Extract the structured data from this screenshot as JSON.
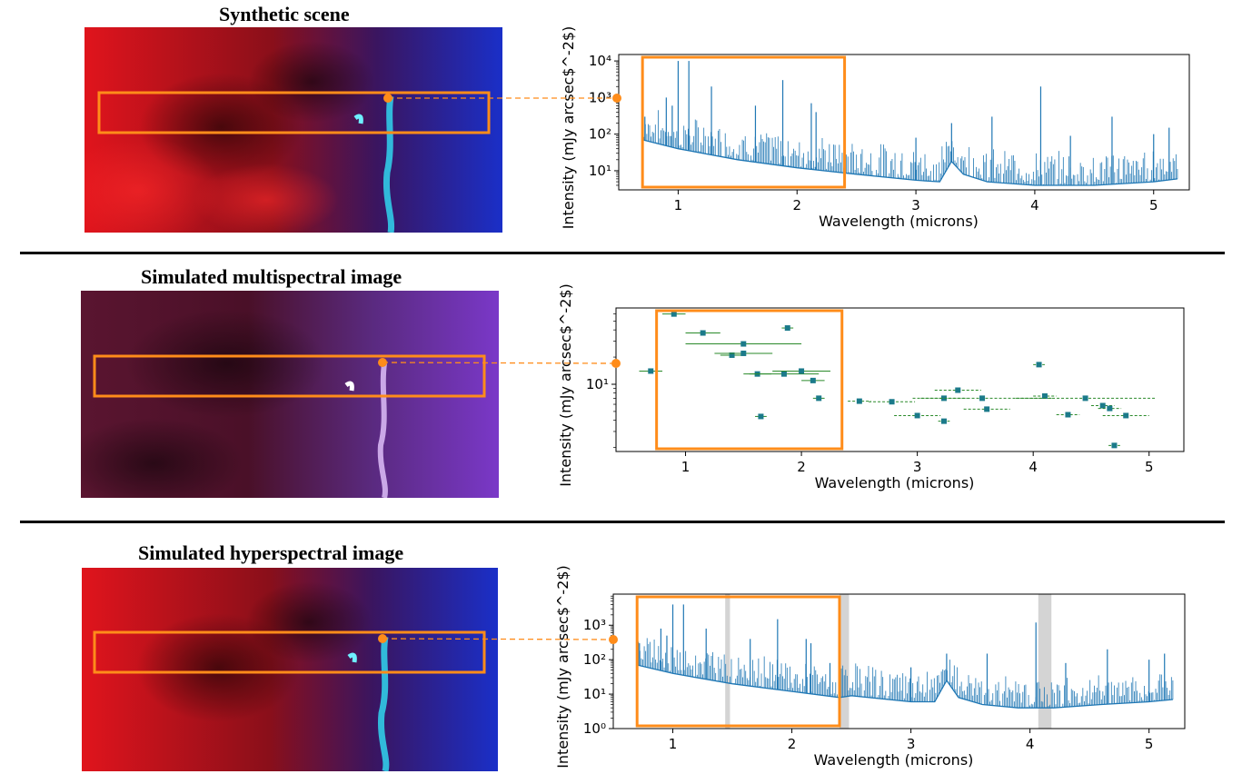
{
  "panels": [
    {
      "title": "Synthetic scene",
      "chart_data": {
        "type": "line",
        "xlabel": "Wavelength (microns)",
        "ylabel": "Intensity (mJy arcsec$^-2$)",
        "xlim": [
          0.5,
          5.3
        ],
        "ylim": [
          3,
          15000
        ],
        "yscale": "log",
        "xticks": [
          "1",
          "2",
          "3",
          "4",
          "5"
        ],
        "yticks": [
          "10¹",
          "10²",
          "10³",
          "10⁴"
        ],
        "selection_box_x": [
          0.7,
          2.4
        ],
        "continuum": [
          [
            0.7,
            70
          ],
          [
            1.0,
            40
          ],
          [
            1.5,
            20
          ],
          [
            2.0,
            12
          ],
          [
            2.5,
            8
          ],
          [
            3.0,
            5.5
          ],
          [
            3.2,
            5
          ],
          [
            3.3,
            18
          ],
          [
            3.4,
            8
          ],
          [
            3.6,
            5
          ],
          [
            4.0,
            4
          ],
          [
            4.5,
            4
          ],
          [
            5.0,
            5
          ],
          [
            5.2,
            6
          ]
        ],
        "emission_lines": [
          [
            0.72,
            300
          ],
          [
            0.9,
            1000
          ],
          [
            0.95,
            600
          ],
          [
            1.0,
            10000
          ],
          [
            1.09,
            10000
          ],
          [
            1.28,
            2000
          ],
          [
            1.65,
            600
          ],
          [
            1.88,
            3000
          ],
          [
            2.12,
            700
          ],
          [
            2.16,
            400
          ],
          [
            3.0,
            80
          ],
          [
            3.3,
            200
          ],
          [
            3.64,
            300
          ],
          [
            4.05,
            2000
          ],
          [
            4.3,
            90
          ],
          [
            4.65,
            300
          ],
          [
            5.0,
            100
          ],
          [
            5.13,
            150
          ]
        ],
        "grid": false,
        "legend": "none"
      }
    },
    {
      "title": "Simulated multispectral image",
      "chart_data": {
        "type": "scatter",
        "xlabel": "Wavelength (microns)",
        "ylabel": "Intensity (mJy arcsec$^-2$)",
        "xlim": [
          0.4,
          5.3
        ],
        "ylim": [
          1.8,
          70
        ],
        "yscale": "log",
        "xticks": [
          "1",
          "2",
          "3",
          "4",
          "5"
        ],
        "yticks": [
          "10¹"
        ],
        "selection_box_x": [
          0.75,
          2.35
        ],
        "points": [
          {
            "x": 0.7,
            "y": 14,
            "xerr": 0.1
          },
          {
            "x": 0.9,
            "y": 60,
            "xerr": 0.1
          },
          {
            "x": 1.15,
            "y": 37,
            "xerr": 0.15
          },
          {
            "x": 1.4,
            "y": 21,
            "xerr": 0.1
          },
          {
            "x": 1.5,
            "y": 28,
            "xerr": 0.5
          },
          {
            "x": 1.5,
            "y": 22,
            "xerr": 0.25
          },
          {
            "x": 1.62,
            "y": 13,
            "xerr": 0.12
          },
          {
            "x": 1.65,
            "y": 4.4,
            "xerr": 0.05
          },
          {
            "x": 1.85,
            "y": 13,
            "xerr": 0.3
          },
          {
            "x": 1.88,
            "y": 42,
            "xerr": 0.05
          },
          {
            "x": 2.0,
            "y": 14,
            "xerr": 0.25
          },
          {
            "x": 2.1,
            "y": 11,
            "xerr": 0.1
          },
          {
            "x": 2.15,
            "y": 7,
            "xerr": 0.05
          },
          {
            "x": 2.5,
            "y": 6.5,
            "xerr": 0.1
          },
          {
            "x": 2.78,
            "y": 6.4,
            "xerr": 0.2
          },
          {
            "x": 3.0,
            "y": 4.5,
            "xerr": 0.2
          },
          {
            "x": 3.23,
            "y": 7,
            "xerr": 0.2
          },
          {
            "x": 3.23,
            "y": 3.9,
            "xerr": 0.05
          },
          {
            "x": 3.35,
            "y": 8.6,
            "xerr": 0.2
          },
          {
            "x": 3.56,
            "y": 7,
            "xerr": 0.6
          },
          {
            "x": 3.6,
            "y": 5.3,
            "xerr": 0.2
          },
          {
            "x": 4.05,
            "y": 16.5,
            "xerr": 0.05
          },
          {
            "x": 4.1,
            "y": 7.4,
            "xerr": 0.1
          },
          {
            "x": 4.3,
            "y": 4.6,
            "xerr": 0.1
          },
          {
            "x": 4.45,
            "y": 7,
            "xerr": 0.6
          },
          {
            "x": 4.6,
            "y": 5.8,
            "xerr": 0.1
          },
          {
            "x": 4.66,
            "y": 5.4,
            "xerr": 0.1
          },
          {
            "x": 4.7,
            "y": 2.1,
            "xerr": 0.05
          },
          {
            "x": 4.8,
            "y": 4.5,
            "xerr": 0.2
          }
        ],
        "grid": false,
        "legend": "none"
      }
    },
    {
      "title": "Simulated hyperspectral image",
      "chart_data": {
        "type": "line",
        "xlabel": "Wavelength (microns)",
        "ylabel": "Intensity (mJy arcsec$^-2$)",
        "xlim": [
          0.5,
          5.3
        ],
        "ylim": [
          1,
          8000
        ],
        "yscale": "log",
        "xticks": [
          "1",
          "2",
          "3",
          "4",
          "5"
        ],
        "yticks": [
          "10⁰",
          "10¹",
          "10²",
          "10³"
        ],
        "selection_box_x": [
          0.7,
          2.4
        ],
        "gaps_x": [
          [
            1.44,
            1.48
          ],
          [
            2.4,
            2.48
          ],
          [
            4.07,
            4.18
          ]
        ],
        "continuum": [
          [
            0.7,
            70
          ],
          [
            1.0,
            40
          ],
          [
            1.5,
            20
          ],
          [
            2.0,
            12
          ],
          [
            2.4,
            8
          ],
          [
            2.5,
            9
          ],
          [
            3.0,
            6
          ],
          [
            3.2,
            6
          ],
          [
            3.3,
            25
          ],
          [
            3.4,
            8
          ],
          [
            3.6,
            5
          ],
          [
            3.9,
            4
          ],
          [
            4.2,
            4
          ],
          [
            4.6,
            5
          ],
          [
            5.0,
            6
          ],
          [
            5.2,
            7
          ]
        ],
        "emission_lines": [
          [
            0.72,
            300
          ],
          [
            0.9,
            800
          ],
          [
            0.95,
            500
          ],
          [
            1.0,
            4000
          ],
          [
            1.09,
            4000
          ],
          [
            1.28,
            800
          ],
          [
            1.65,
            400
          ],
          [
            1.88,
            1500
          ],
          [
            2.12,
            400
          ],
          [
            2.16,
            300
          ],
          [
            2.32,
            80
          ],
          [
            3.0,
            60
          ],
          [
            3.3,
            150
          ],
          [
            3.64,
            150
          ],
          [
            4.05,
            1200
          ],
          [
            4.3,
            80
          ],
          [
            4.65,
            200
          ],
          [
            5.0,
            100
          ],
          [
            5.13,
            150
          ]
        ],
        "grid": false,
        "legend": "none"
      }
    }
  ],
  "colors": {
    "spectrum": "#1f77b4",
    "points": "#1b7a8a",
    "errorbars": "#2a8a2a",
    "selection": "#ff8c1a",
    "gap": "#d4d4d4"
  }
}
